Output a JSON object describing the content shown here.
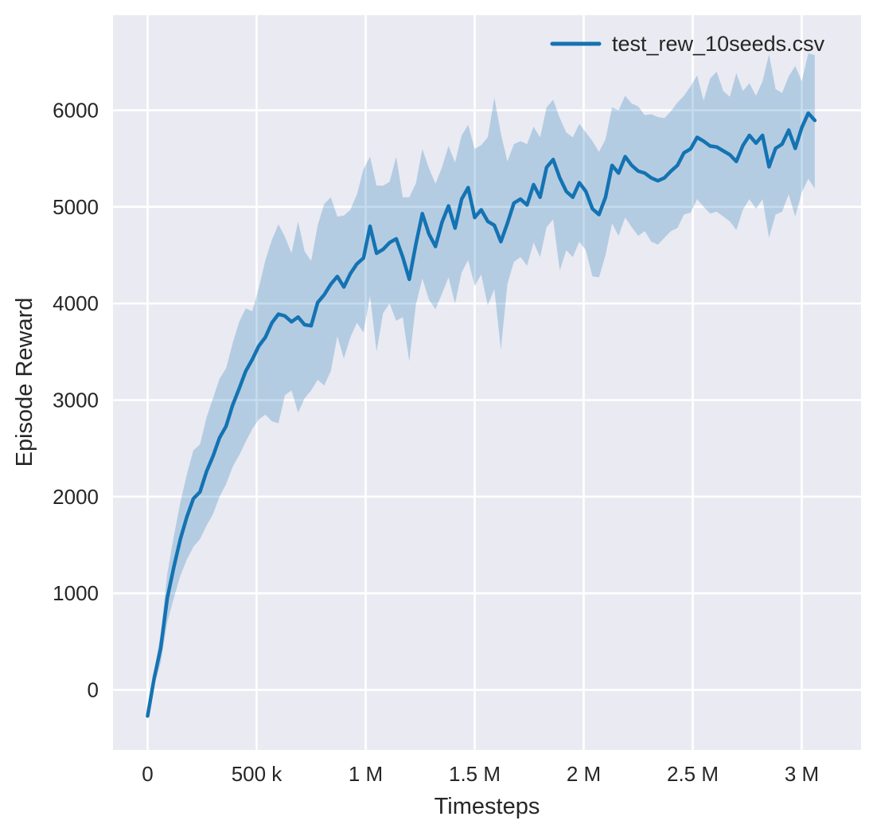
{
  "figure": {
    "background": "#ffffff",
    "title": ""
  },
  "plot": {
    "background": "#eaeaf2",
    "gridline_color": "#ffffff",
    "text_color": "#262626"
  },
  "colors": {
    "line": "#1473b2",
    "band_fill": "rgba(20,115,178,0.25)"
  },
  "legend": {
    "position": "upper right",
    "entries": [
      {
        "label": "test_rew_10seeds.csv",
        "color": "#1473b2"
      }
    ]
  },
  "axes": {
    "x": {
      "label": "Timesteps",
      "ticks": [
        {
          "value": 0,
          "label": "0"
        },
        {
          "value": 500000,
          "label": "500 k"
        },
        {
          "value": 1000000,
          "label": "1 M"
        },
        {
          "value": 1500000,
          "label": "1.5 M"
        },
        {
          "value": 2000000,
          "label": "2 M"
        },
        {
          "value": 2500000,
          "label": "2.5 M"
        },
        {
          "value": 3000000,
          "label": "3 M"
        }
      ]
    },
    "y": {
      "label": "Episode Reward",
      "ticks": [
        {
          "value": 0,
          "label": "0"
        },
        {
          "value": 1000,
          "label": "1000"
        },
        {
          "value": 2000,
          "label": "2000"
        },
        {
          "value": 3000,
          "label": "3000"
        },
        {
          "value": 4000,
          "label": "4000"
        },
        {
          "value": 5000,
          "label": "5000"
        },
        {
          "value": 6000,
          "label": "6000"
        }
      ]
    }
  },
  "chart_data": {
    "type": "line",
    "title": "",
    "xlabel": "Timesteps",
    "ylabel": "Episode Reward",
    "xlim": [
      -159000,
      3272000
    ],
    "ylim": [
      -620,
      6990
    ],
    "grid": true,
    "legend_position": "upper right",
    "series": [
      {
        "name": "test_rew_10seeds.csv",
        "style": "mean line with shaded min-max band across 10 seeds",
        "x": [
          0,
          30000,
          60000,
          90000,
          120000,
          150000,
          180000,
          210000,
          240000,
          270000,
          300000,
          330000,
          360000,
          390000,
          420000,
          450000,
          480000,
          510000,
          540000,
          570000,
          600000,
          630000,
          660000,
          690000,
          720000,
          750000,
          780000,
          810000,
          840000,
          870000,
          900000,
          930000,
          960000,
          990000,
          1020000,
          1050000,
          1080000,
          1110000,
          1140000,
          1170000,
          1200000,
          1230000,
          1260000,
          1290000,
          1320000,
          1350000,
          1380000,
          1410000,
          1440000,
          1470000,
          1500000,
          1530000,
          1560000,
          1590000,
          1620000,
          1650000,
          1680000,
          1710000,
          1740000,
          1770000,
          1800000,
          1830000,
          1860000,
          1890000,
          1920000,
          1950000,
          1980000,
          2010000,
          2040000,
          2070000,
          2100000,
          2130000,
          2160000,
          2190000,
          2220000,
          2250000,
          2280000,
          2310000,
          2340000,
          2370000,
          2400000,
          2430000,
          2460000,
          2490000,
          2520000,
          2550000,
          2580000,
          2610000,
          2640000,
          2670000,
          2700000,
          2730000,
          2760000,
          2790000,
          2820000,
          2850000,
          2880000,
          2910000,
          2940000,
          2970000,
          3000000,
          3030000,
          3060000
        ],
        "mean": [
          -270,
          120,
          430,
          950,
          1270,
          1560,
          1790,
          1980,
          2050,
          2260,
          2420,
          2610,
          2730,
          2950,
          3120,
          3300,
          3420,
          3560,
          3650,
          3800,
          3890,
          3870,
          3810,
          3860,
          3780,
          3770,
          4010,
          4090,
          4200,
          4280,
          4170,
          4310,
          4410,
          4470,
          4800,
          4520,
          4560,
          4630,
          4670,
          4480,
          4250,
          4610,
          4930,
          4720,
          4590,
          4840,
          5010,
          4780,
          5080,
          5200,
          4890,
          4970,
          4850,
          4810,
          4640,
          4830,
          5040,
          5080,
          5020,
          5230,
          5100,
          5410,
          5490,
          5300,
          5160,
          5100,
          5250,
          5160,
          4980,
          4920,
          5100,
          5430,
          5350,
          5520,
          5430,
          5370,
          5350,
          5300,
          5270,
          5300,
          5370,
          5430,
          5560,
          5600,
          5720,
          5680,
          5630,
          5620,
          5580,
          5540,
          5470,
          5635,
          5740,
          5660,
          5740,
          5415,
          5605,
          5650,
          5795,
          5605,
          5820,
          5970,
          5895
        ],
        "lower": [
          -290,
          40,
          280,
          700,
          950,
          1180,
          1350,
          1480,
          1560,
          1700,
          1820,
          2000,
          2130,
          2310,
          2430,
          2570,
          2700,
          2800,
          2850,
          2780,
          2760,
          3050,
          3100,
          2870,
          3020,
          3100,
          3210,
          3150,
          3300,
          3660,
          3430,
          3650,
          3800,
          3700,
          4080,
          3500,
          3900,
          4000,
          3820,
          3860,
          3400,
          3980,
          4260,
          4040,
          3940,
          4100,
          4270,
          4000,
          4320,
          4450,
          4180,
          4300,
          3980,
          4150,
          3520,
          4200,
          4430,
          4480,
          4390,
          4630,
          4480,
          4790,
          4870,
          4340,
          4550,
          4480,
          4640,
          4550,
          4280,
          4270,
          4500,
          4830,
          4700,
          4890,
          4790,
          4700,
          4750,
          4640,
          4610,
          4680,
          4750,
          4780,
          4920,
          4940,
          5080,
          5000,
          4930,
          4950,
          4900,
          4850,
          4760,
          4970,
          5080,
          4980,
          5080,
          4680,
          4920,
          4950,
          5130,
          4900,
          5150,
          5290,
          5190
        ],
        "upper": [
          -250,
          200,
          580,
          1200,
          1590,
          1940,
          2230,
          2480,
          2540,
          2820,
          3020,
          3220,
          3330,
          3590,
          3810,
          3950,
          3920,
          4160,
          4450,
          4660,
          4820,
          4690,
          4520,
          4850,
          4540,
          4440,
          4810,
          5030,
          5100,
          4900,
          4910,
          4970,
          5130,
          5390,
          5520,
          5220,
          5220,
          5260,
          5520,
          5100,
          5100,
          5240,
          5600,
          5400,
          5240,
          5410,
          5630,
          5460,
          5740,
          5850,
          5600,
          5640,
          5720,
          6130,
          5760,
          5470,
          5650,
          5680,
          5650,
          5830,
          5720,
          6030,
          6110,
          5920,
          5770,
          5720,
          5860,
          5770,
          5680,
          5570,
          5700,
          6030,
          6000,
          6150,
          6070,
          6040,
          5950,
          5960,
          5930,
          5920,
          5990,
          6080,
          6150,
          6250,
          6360,
          6100,
          6330,
          6400,
          6200,
          6140,
          6385,
          6200,
          6280,
          6150,
          6300,
          6580,
          6220,
          6180,
          6350,
          6460,
          6300,
          6590,
          6570
        ]
      }
    ]
  }
}
